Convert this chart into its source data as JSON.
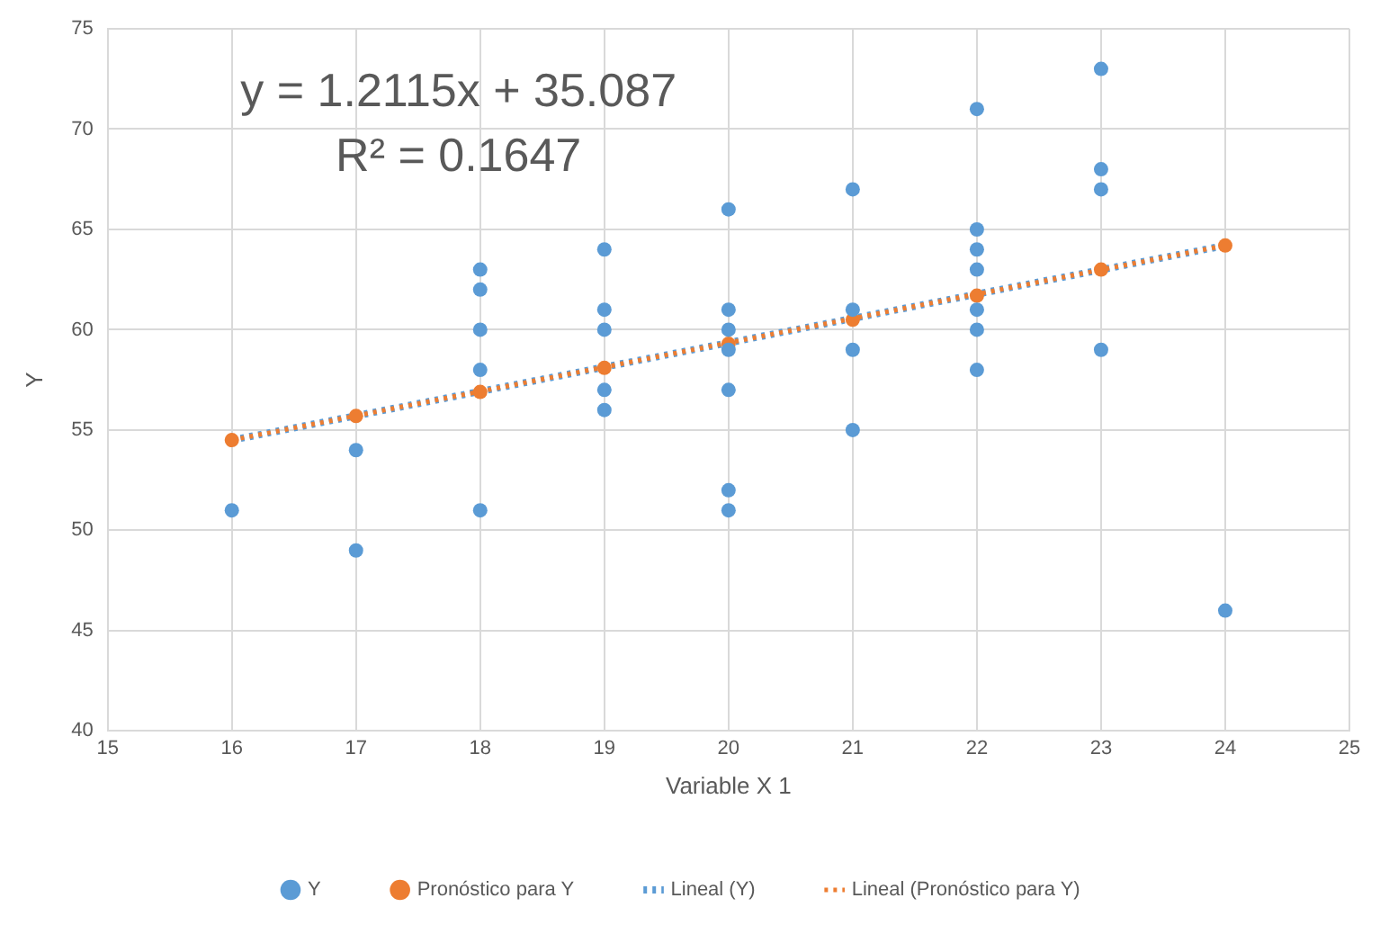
{
  "chart_data": {
    "type": "scatter",
    "xlabel": "Variable X 1",
    "ylabel": "Y",
    "xlim": [
      15,
      25
    ],
    "xticks": [
      15,
      16,
      17,
      18,
      19,
      20,
      21,
      22,
      23,
      24,
      25
    ],
    "ylim": [
      40,
      75
    ],
    "yticks": [
      40,
      45,
      50,
      55,
      60,
      65,
      70,
      75
    ],
    "grid": true,
    "legend": "bottom",
    "marker": "circle",
    "series": [
      {
        "name": "Y",
        "color": "#5b9bd5",
        "x": [
          16,
          17,
          17,
          18,
          18,
          18,
          18,
          18,
          19,
          19,
          19,
          19,
          19,
          20,
          20,
          20,
          20,
          20,
          20,
          20,
          21,
          21,
          21,
          21,
          22,
          22,
          22,
          22,
          22,
          22,
          22,
          23,
          23,
          23,
          23,
          24
        ],
        "values": [
          51,
          54,
          49,
          63,
          62,
          60,
          58,
          51,
          64,
          61,
          60,
          57,
          56,
          66,
          61,
          60,
          59,
          57,
          52,
          51,
          67,
          61,
          59,
          55,
          71,
          65,
          64,
          63,
          61,
          60,
          58,
          73,
          68,
          67,
          59,
          46
        ]
      },
      {
        "name": "Pronóstico para Y",
        "color": "#ed7d31",
        "x": [
          16,
          17,
          18,
          19,
          20,
          21,
          22,
          23,
          24
        ],
        "values": [
          54.5,
          55.7,
          56.9,
          58.1,
          59.3,
          60.5,
          61.7,
          63.0,
          64.2
        ]
      },
      {
        "name": "Lineal (Y)",
        "type": "line",
        "color": "#5b9bd5",
        "line_style": "dotted",
        "marker": "none",
        "x": [
          16,
          24
        ],
        "values": [
          54.5,
          64.2
        ]
      },
      {
        "name": "Lineal (Pronóstico para Y)",
        "type": "line",
        "color": "#ed7d31",
        "line_style": "dotted",
        "marker": "none",
        "x": [
          16,
          24
        ],
        "values": [
          54.5,
          64.2
        ]
      }
    ],
    "annotations": [
      "y = 1.2115x + 35.087",
      "R² = 0.1647"
    ]
  }
}
